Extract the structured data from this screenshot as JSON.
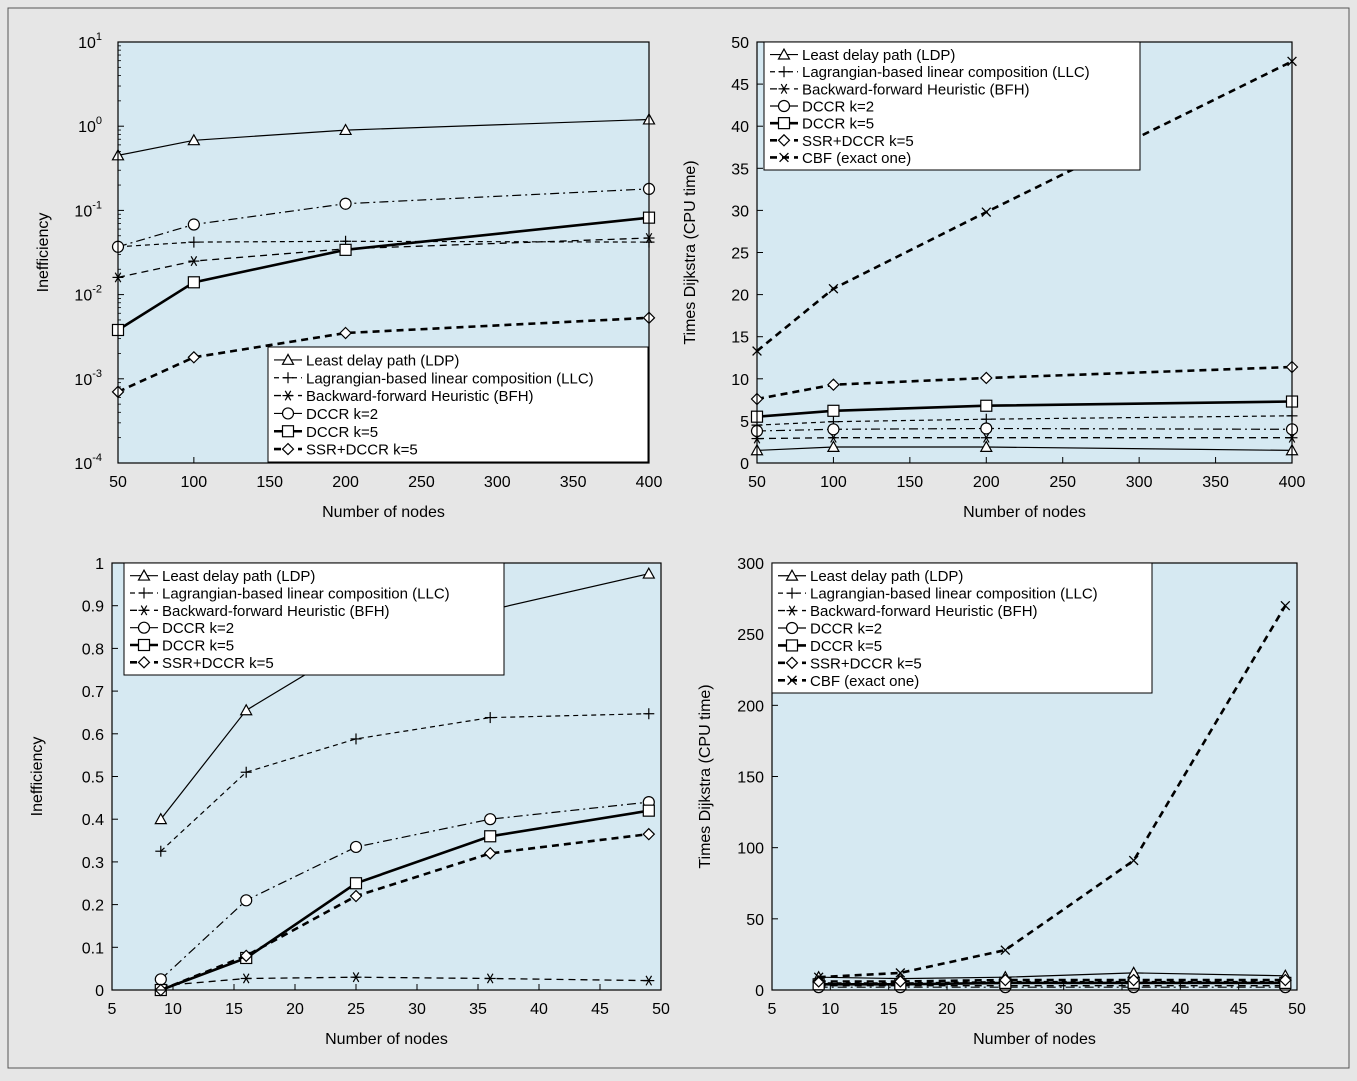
{
  "chart_data": [
    {
      "type": "line",
      "yscale": "log",
      "xlabel": "Number of nodes",
      "ylabel": "Inefficiency",
      "xlim": [
        50,
        400
      ],
      "ylim": [
        0.0001,
        10
      ],
      "xticks": [
        "50",
        "100",
        "150",
        "200",
        "250",
        "300",
        "350",
        "400"
      ],
      "yticks": [
        {
          "base": "10",
          "exp": "1"
        },
        {
          "base": "10",
          "exp": "0"
        },
        {
          "base": "10",
          "exp": "-1"
        },
        {
          "base": "10",
          "exp": "-2"
        },
        {
          "base": "10",
          "exp": "-3"
        },
        {
          "base": "10",
          "exp": "-4"
        }
      ],
      "legend_position": "bottom-right",
      "background": "#d6e9f2",
      "series": [
        {
          "name": "Least delay path (LDP)",
          "marker": "triangle",
          "style": "thin-solid",
          "x": [
            50,
            100,
            200,
            400
          ],
          "y": [
            0.45,
            0.68,
            0.9,
            1.2
          ]
        },
        {
          "name": "Lagrangian-based linear composition (LLC)",
          "marker": "plus",
          "style": "thin-dashed",
          "x": [
            50,
            100,
            200,
            400
          ],
          "y": [
            0.037,
            0.042,
            0.043,
            0.042
          ]
        },
        {
          "name": "Backward-forward Heuristic (BFH)",
          "marker": "star",
          "style": "dashed",
          "x": [
            50,
            100,
            200,
            400
          ],
          "y": [
            0.016,
            0.025,
            0.035,
            0.047
          ]
        },
        {
          "name": "DCCR k=2",
          "marker": "circle",
          "style": "dash-dot",
          "x": [
            50,
            100,
            200,
            400
          ],
          "y": [
            0.037,
            0.068,
            0.12,
            0.18
          ]
        },
        {
          "name": "DCCR k=5",
          "marker": "square",
          "style": "thick-solid",
          "x": [
            50,
            100,
            200,
            400
          ],
          "y": [
            0.0038,
            0.014,
            0.034,
            0.082
          ]
        },
        {
          "name": "SSR+DCCR k=5",
          "marker": "diamond",
          "style": "thick-dashed",
          "x": [
            50,
            100,
            200,
            400
          ],
          "y": [
            0.0007,
            0.0018,
            0.0035,
            0.0053
          ]
        }
      ]
    },
    {
      "type": "line",
      "xlabel": "Number of nodes",
      "ylabel": "Times Dijkstra (CPU time)",
      "xlim": [
        50,
        400
      ],
      "ylim": [
        0,
        50
      ],
      "xticks": [
        "50",
        "100",
        "150",
        "200",
        "250",
        "300",
        "350",
        "400"
      ],
      "yticks": [
        "0",
        "5",
        "10",
        "15",
        "20",
        "25",
        "30",
        "35",
        "40",
        "45",
        "50"
      ],
      "legend_position": "top-left",
      "background": "#d6e9f2",
      "series": [
        {
          "name": "Least delay path (LDP)",
          "marker": "triangle",
          "style": "thin-solid",
          "x": [
            50,
            100,
            200,
            400
          ],
          "y": [
            1.5,
            1.9,
            1.9,
            1.5
          ]
        },
        {
          "name": "Lagrangian-based linear composition (LLC)",
          "marker": "plus",
          "style": "thin-dashed",
          "x": [
            50,
            100,
            200,
            400
          ],
          "y": [
            4.5,
            4.9,
            5.2,
            5.6
          ]
        },
        {
          "name": "Backward-forward Heuristic (BFH)",
          "marker": "star",
          "style": "dashed",
          "x": [
            50,
            100,
            200,
            400
          ],
          "y": [
            2.9,
            3.0,
            3.0,
            3.0
          ]
        },
        {
          "name": "DCCR k=2",
          "marker": "circle",
          "style": "dash-dot",
          "x": [
            50,
            100,
            200,
            400
          ],
          "y": [
            3.8,
            4.0,
            4.1,
            4.0
          ]
        },
        {
          "name": "DCCR k=5",
          "marker": "square",
          "style": "thick-solid",
          "x": [
            50,
            100,
            200,
            400
          ],
          "y": [
            5.5,
            6.2,
            6.8,
            7.3
          ]
        },
        {
          "name": "SSR+DCCR k=5",
          "marker": "diamond",
          "style": "thick-dashed",
          "x": [
            50,
            100,
            200,
            400
          ],
          "y": [
            7.6,
            9.3,
            10.1,
            11.4
          ]
        },
        {
          "name": "CBF (exact one)",
          "marker": "x",
          "style": "thick-dashed",
          "x": [
            50,
            100,
            200,
            400
          ],
          "y": [
            13.3,
            20.7,
            29.8,
            47.7
          ]
        }
      ]
    },
    {
      "type": "line",
      "xlabel": "Number of nodes",
      "ylabel": "Inefficiency",
      "xlim": [
        5,
        50
      ],
      "ylim": [
        0,
        1
      ],
      "xticks": [
        "5",
        "10",
        "15",
        "20",
        "25",
        "30",
        "35",
        "40",
        "45",
        "50"
      ],
      "yticks": [
        "0",
        "0.1",
        "0.2",
        "0.3",
        "0.4",
        "0.5",
        "0.6",
        "0.7",
        "0.8",
        "0.9",
        "1"
      ],
      "legend_position": "top-left",
      "background": "#d6e9f2",
      "series": [
        {
          "name": "Least delay path (LDP)",
          "marker": "triangle",
          "style": "thin-solid",
          "x": [
            9,
            16,
            25,
            36,
            49
          ],
          "y": [
            0.4,
            0.655,
            0.81,
            0.89,
            0.975
          ]
        },
        {
          "name": "Lagrangian-based linear composition (LLC)",
          "marker": "plus",
          "style": "thin-dashed",
          "x": [
            9,
            16,
            25,
            36,
            49
          ],
          "y": [
            0.325,
            0.51,
            0.588,
            0.638,
            0.647
          ]
        },
        {
          "name": "Backward-forward Heuristic (BFH)",
          "marker": "star",
          "style": "dashed",
          "x": [
            9,
            16,
            25,
            36,
            49
          ],
          "y": [
            0.01,
            0.027,
            0.03,
            0.027,
            0.022
          ]
        },
        {
          "name": "DCCR k=2",
          "marker": "circle",
          "style": "dash-dot",
          "x": [
            9,
            16,
            25,
            36,
            49
          ],
          "y": [
            0.025,
            0.21,
            0.335,
            0.4,
            0.44
          ]
        },
        {
          "name": "DCCR k=5",
          "marker": "square",
          "style": "thick-solid",
          "x": [
            9,
            16,
            25,
            36,
            49
          ],
          "y": [
            0.0,
            0.075,
            0.25,
            0.36,
            0.42
          ]
        },
        {
          "name": "SSR+DCCR k=5",
          "marker": "diamond",
          "style": "thick-dashed",
          "x": [
            9,
            16,
            25,
            36,
            49
          ],
          "y": [
            0.0,
            0.08,
            0.22,
            0.32,
            0.365
          ]
        }
      ]
    },
    {
      "type": "line",
      "xlabel": "Number of nodes",
      "ylabel": "Times Dijkstra (CPU time)",
      "xlim": [
        5,
        50
      ],
      "ylim": [
        0,
        300
      ],
      "xticks": [
        "5",
        "10",
        "15",
        "20",
        "25",
        "30",
        "35",
        "40",
        "45",
        "50"
      ],
      "yticks": [
        "0",
        "50",
        "100",
        "150",
        "200",
        "250",
        "300"
      ],
      "legend_position": "top-left",
      "background": "#d6e9f2",
      "series": [
        {
          "name": "Least delay path (LDP)",
          "marker": "triangle",
          "style": "thin-solid",
          "x": [
            9,
            16,
            25,
            36,
            49
          ],
          "y": [
            9,
            8,
            9,
            12,
            10
          ]
        },
        {
          "name": "Lagrangian-based linear composition (LLC)",
          "marker": "plus",
          "style": "thin-dashed",
          "x": [
            9,
            16,
            25,
            36,
            49
          ],
          "y": [
            5,
            5,
            6,
            6,
            6
          ]
        },
        {
          "name": "Backward-forward Heuristic (BFH)",
          "marker": "star",
          "style": "dashed",
          "x": [
            9,
            16,
            25,
            36,
            49
          ],
          "y": [
            3,
            3,
            3,
            3,
            3
          ]
        },
        {
          "name": "DCCR k=2",
          "marker": "circle",
          "style": "dash-dot",
          "x": [
            9,
            16,
            25,
            36,
            49
          ],
          "y": [
            2,
            2,
            2,
            2,
            2
          ]
        },
        {
          "name": "DCCR k=5",
          "marker": "square",
          "style": "thick-solid",
          "x": [
            9,
            16,
            25,
            36,
            49
          ],
          "y": [
            4,
            4,
            5,
            5,
            5
          ]
        },
        {
          "name": "SSR+DCCR k=5",
          "marker": "diamond",
          "style": "thick-dashed",
          "x": [
            9,
            16,
            25,
            36,
            49
          ],
          "y": [
            6,
            6,
            7,
            7,
            7
          ]
        },
        {
          "name": "CBF (exact one)",
          "marker": "x",
          "style": "thick-dashed",
          "x": [
            9,
            16,
            25,
            36,
            49
          ],
          "y": [
            9,
            12,
            28,
            91,
            270
          ]
        }
      ]
    }
  ]
}
